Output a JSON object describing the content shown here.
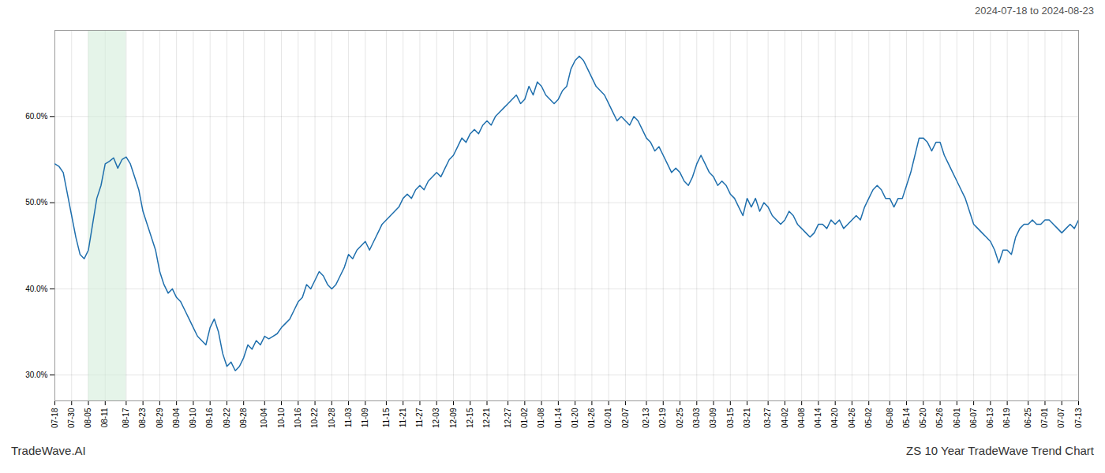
{
  "chart_data": {
    "type": "line",
    "title": "ZS 10 Year TradeWave Trend Chart",
    "subtitle": "2024-07-18 to 2024-08-23",
    "annotations": [
      "TradeWave.AI"
    ],
    "color": "#1f6fad",
    "grid": true,
    "ylim": [
      27,
      70
    ],
    "yticks": [
      {
        "value": 30,
        "label": "30.0%"
      },
      {
        "value": 40,
        "label": "40.0%"
      },
      {
        "value": 50,
        "label": "50.0%"
      },
      {
        "value": 60,
        "label": "60.0%"
      }
    ],
    "shaded_range": {
      "from": "08-05",
      "to": "08-17",
      "color": "#d4edda"
    },
    "categories": [
      "07-18",
      null,
      null,
      null,
      "07-30",
      null,
      null,
      null,
      "08-05",
      null,
      null,
      null,
      "08-11",
      null,
      null,
      null,
      null,
      "08-17",
      null,
      null,
      null,
      "08-23",
      null,
      null,
      null,
      "08-29",
      null,
      null,
      null,
      "09-04",
      null,
      null,
      null,
      "09-10",
      null,
      null,
      null,
      "09-16",
      null,
      null,
      null,
      "09-22",
      null,
      null,
      null,
      "09-28",
      null,
      null,
      null,
      null,
      "10-04",
      null,
      null,
      null,
      "10-10",
      null,
      null,
      null,
      "10-16",
      null,
      null,
      null,
      "10-22",
      null,
      null,
      null,
      "10-28",
      null,
      null,
      null,
      "11-03",
      null,
      null,
      null,
      "11-09",
      null,
      null,
      null,
      null,
      "11-15",
      null,
      null,
      null,
      "11-21",
      null,
      null,
      null,
      "11-27",
      null,
      null,
      null,
      "12-03",
      null,
      null,
      null,
      "12-09",
      null,
      null,
      null,
      "12-15",
      null,
      null,
      null,
      "12-21",
      null,
      null,
      null,
      null,
      "12-27",
      null,
      null,
      null,
      "01-02",
      null,
      null,
      null,
      "01-08",
      null,
      null,
      null,
      "01-14",
      null,
      null,
      null,
      "01-20",
      null,
      null,
      null,
      "01-26",
      null,
      null,
      null,
      "02-01",
      null,
      null,
      null,
      "02-07",
      null,
      null,
      null,
      null,
      "02-13",
      null,
      null,
      null,
      "02-19",
      null,
      null,
      null,
      "02-25",
      null,
      null,
      null,
      "03-03",
      null,
      null,
      null,
      "03-09",
      null,
      null,
      null,
      "03-15",
      null,
      null,
      null,
      "03-21",
      null,
      null,
      null,
      null,
      "03-27",
      null,
      null,
      null,
      "04-02",
      null,
      null,
      null,
      "04-08",
      null,
      null,
      null,
      "04-14",
      null,
      null,
      null,
      "04-20",
      null,
      null,
      null,
      "04-26",
      null,
      null,
      null,
      "05-02",
      null,
      null,
      null,
      null,
      "05-08",
      null,
      null,
      null,
      "05-14",
      null,
      null,
      null,
      "05-20",
      null,
      null,
      null,
      "05-26",
      null,
      null,
      null,
      "06-01",
      null,
      null,
      null,
      "06-07",
      null,
      null,
      null,
      "06-13",
      null,
      null,
      null,
      "06-19",
      null,
      null,
      null,
      null,
      "06-25",
      null,
      null,
      null,
      "07-01",
      null,
      null,
      null,
      "07-07",
      null,
      null,
      null,
      "07-13"
    ],
    "values": [
      54.5,
      54.2,
      53.5,
      51.0,
      48.5,
      46.0,
      44.0,
      43.5,
      44.5,
      47.5,
      50.5,
      52.0,
      54.5,
      54.8,
      55.2,
      54.0,
      55.0,
      55.3,
      54.5,
      53.0,
      51.5,
      49.0,
      47.5,
      46.0,
      44.5,
      42.0,
      40.5,
      39.5,
      40.0,
      39.0,
      38.5,
      37.5,
      36.5,
      35.5,
      34.5,
      34.0,
      33.5,
      35.5,
      36.5,
      35.0,
      32.5,
      31.0,
      31.5,
      30.5,
      31.0,
      32.0,
      33.5,
      33.0,
      34.0,
      33.5,
      34.5,
      34.2,
      34.5,
      34.8,
      35.5,
      36.0,
      36.5,
      37.5,
      38.5,
      39.0,
      40.5,
      40.0,
      41.0,
      42.0,
      41.5,
      40.5,
      40.0,
      40.5,
      41.5,
      42.5,
      44.0,
      43.5,
      44.5,
      45.0,
      45.5,
      44.5,
      45.5,
      46.5,
      47.5,
      48.0,
      48.5,
      49.0,
      49.5,
      50.5,
      51.0,
      50.5,
      51.5,
      52.0,
      51.5,
      52.5,
      53.0,
      53.5,
      53.0,
      54.0,
      55.0,
      55.5,
      56.5,
      57.5,
      57.0,
      58.0,
      58.5,
      58.0,
      59.0,
      59.5,
      59.0,
      60.0,
      60.5,
      61.0,
      61.5,
      62.0,
      62.5,
      61.5,
      62.0,
      63.5,
      62.5,
      64.0,
      63.5,
      62.5,
      62.0,
      61.5,
      62.0,
      63.0,
      63.5,
      65.5,
      66.5,
      67.0,
      66.5,
      65.5,
      64.5,
      63.5,
      63.0,
      62.5,
      61.5,
      60.5,
      59.5,
      60.0,
      59.5,
      59.0,
      60.0,
      59.5,
      58.5,
      57.5,
      57.0,
      56.0,
      56.5,
      55.5,
      54.5,
      53.5,
      54.0,
      53.5,
      52.5,
      52.0,
      53.0,
      54.5,
      55.5,
      54.5,
      53.5,
      53.0,
      52.0,
      52.5,
      52.0,
      51.0,
      50.5,
      49.5,
      48.5,
      50.5,
      49.5,
      50.5,
      49.0,
      50.0,
      49.5,
      48.5,
      48.0,
      47.5,
      48.0,
      49.0,
      48.5,
      47.5,
      47.0,
      46.5,
      46.0,
      46.5,
      47.5,
      47.5,
      47.0,
      48.0,
      47.5,
      48.0,
      47.0,
      47.5,
      48.0,
      48.5,
      48.0,
      49.5,
      50.5,
      51.5,
      52.0,
      51.5,
      50.5,
      50.5,
      49.5,
      50.5,
      50.5,
      52.0,
      53.5,
      55.5,
      57.5,
      57.5,
      57.0,
      56.0,
      57.0,
      57.0,
      55.5,
      54.5,
      53.5,
      52.5,
      51.5,
      50.5,
      49.0,
      47.5,
      47.0,
      46.5,
      46.0,
      45.5,
      44.5,
      43.0,
      44.5,
      44.5,
      44.0,
      46.0,
      47.0,
      47.5,
      47.5,
      48.0,
      47.5,
      47.5,
      48.0,
      48.0,
      47.5,
      47.0,
      46.5,
      47.0,
      47.5,
      47.0,
      48.0
    ]
  }
}
